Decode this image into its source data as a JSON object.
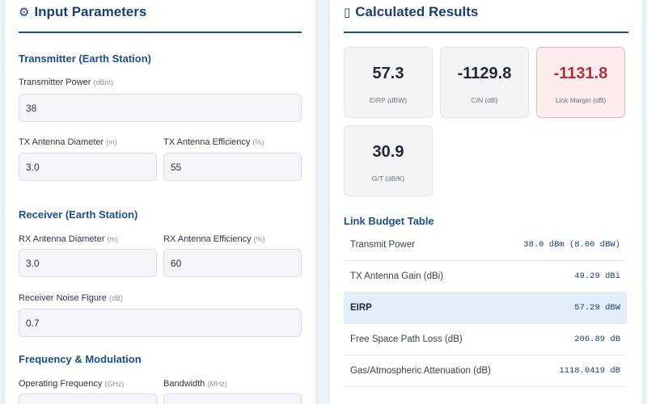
{
  "input_panel": {
    "icon": "gear-icon",
    "icon_glyph": "⚙",
    "title": "Input Parameters",
    "sections": {
      "transmitter": "Transmitter (Earth Station)",
      "receiver": "Receiver (Earth Station)",
      "frequency": "Frequency & Modulation"
    },
    "fields": {
      "tx_power": {
        "label": "Transmitter Power",
        "unit": "(dBm)",
        "value": "38"
      },
      "tx_diameter": {
        "label": "TX Antenna Diameter",
        "unit": "(m)",
        "value": "3.0"
      },
      "tx_efficiency": {
        "label": "TX Antenna Efficiency",
        "unit": "(%)",
        "value": "55"
      },
      "rx_diameter": {
        "label": "RX Antenna Diameter",
        "unit": "(m)",
        "value": "3.0"
      },
      "rx_efficiency": {
        "label": "RX Antenna Efficiency",
        "unit": "(%)",
        "value": "60"
      },
      "rx_noise": {
        "label": "Receiver Noise Figure",
        "unit": "(dB)",
        "value": "0.7"
      },
      "frequency": {
        "label": "Operating Frequency",
        "unit": "(GHz)",
        "value": ""
      },
      "bandwidth": {
        "label": "Bandwidth",
        "unit": "(MHz)",
        "value": ""
      }
    }
  },
  "results_panel": {
    "icon": "chart-icon",
    "icon_glyph": "▯",
    "title": "Calculated Results",
    "cards": {
      "eirp": {
        "value": "57.3",
        "label": "EIRP (dBW)"
      },
      "cn": {
        "value": "-1129.8",
        "label": "C/N (dB)"
      },
      "margin": {
        "value": "-1131.8",
        "label": "Link Margin (dB)"
      },
      "gt": {
        "value": "30.9",
        "label": "G/T (dB/K)"
      }
    },
    "table_title": "Link Budget Table",
    "table_rows": [
      {
        "name": "Transmit Power",
        "value": "38.0 dBm (8.00 dBW)"
      },
      {
        "name": "TX Antenna Gain (dBi)",
        "value": "49.29 dBi"
      },
      {
        "name": "EIRP",
        "value": "57.29 dBW"
      },
      {
        "name": "Free Space Path Loss (dB)",
        "value": "206.89 dB"
      },
      {
        "name": "Gas/Atmospheric Attenuation (dB)",
        "value": "1118.0419 dB"
      }
    ]
  },
  "colors": {
    "accent": "#1c4f85",
    "title": "#1c3f6e",
    "warning_bg": "#fdecee",
    "warning_text": "#b03040",
    "highlight_row": "#e2eef9"
  }
}
